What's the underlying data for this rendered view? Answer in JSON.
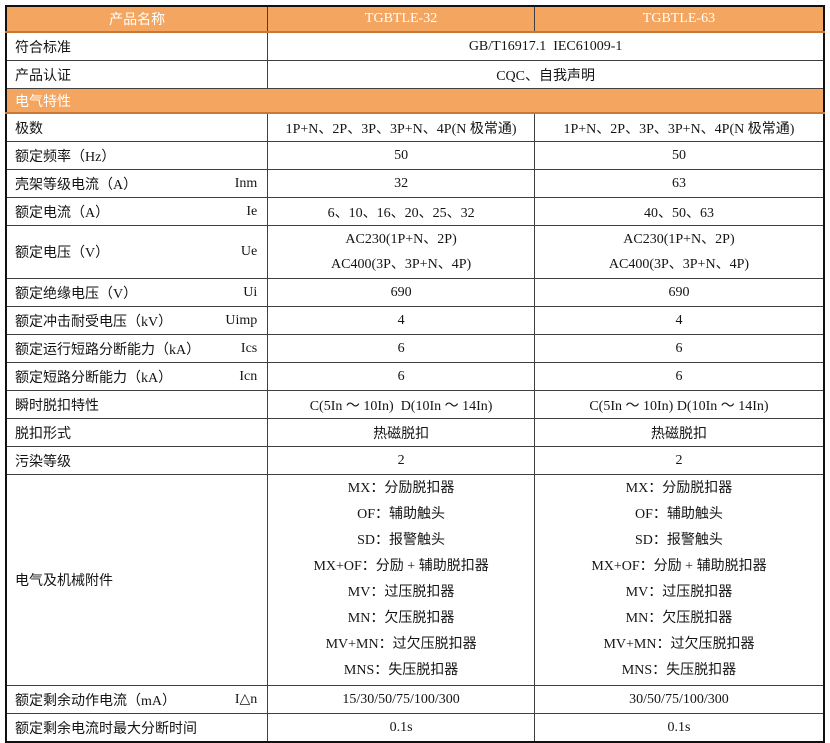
{
  "colors": {
    "header_bg": "#F4A661",
    "header_border": "#C67A33",
    "grid": "#404040",
    "outer_border": "#111111",
    "header_text": "#ffffff",
    "body_text": "#141414"
  },
  "table": {
    "header": {
      "product_name_label": "产品名称",
      "model_32": "TGBTLE-32",
      "model_63": "TGBTLE-63"
    },
    "rows": [
      {
        "type": "span",
        "label": "符合标准",
        "value": "GB/T16917.1  IEC61009-1"
      },
      {
        "type": "span",
        "label": "产品认证",
        "value": "CQC、自我声明"
      },
      {
        "type": "section",
        "label": "电气特性"
      },
      {
        "type": "pair",
        "label": "极数",
        "values": [
          "1P+N、2P、3P、3P+N、4P(N 极常通)",
          "1P+N、2P、3P、3P+N、4P(N 极常通)"
        ]
      },
      {
        "type": "pair",
        "label": "额定频率（Hz）",
        "values": [
          "50",
          "50"
        ]
      },
      {
        "type": "pair",
        "label": "壳架等级电流（A）",
        "sym": "Inm",
        "values": [
          "32",
          "63"
        ]
      },
      {
        "type": "pair",
        "label": "额定电流（A）",
        "sym": "Ie",
        "values": [
          "6、10、16、20、25、32",
          "40、50、63"
        ]
      },
      {
        "type": "pair",
        "label": "额定电压（V）",
        "sym": "Ue",
        "values": [
          [
            "AC230(1P+N、2P)",
            "AC400(3P、3P+N、4P)"
          ],
          [
            "AC230(1P+N、2P)",
            "AC400(3P、3P+N、4P)"
          ]
        ]
      },
      {
        "type": "pair",
        "label": "额定绝缘电压（V）",
        "sym": "Ui",
        "values": [
          "690",
          "690"
        ]
      },
      {
        "type": "pair",
        "label": "额定冲击耐受电压（kV）",
        "sym": "Uimp",
        "values": [
          "4",
          "4"
        ]
      },
      {
        "type": "pair",
        "label": "额定运行短路分断能力（kA）",
        "sym": "Ics",
        "values": [
          "6",
          "6"
        ]
      },
      {
        "type": "pair",
        "label": "额定短路分断能力（kA）",
        "sym": "Icn",
        "values": [
          "6",
          "6"
        ]
      },
      {
        "type": "pair",
        "label": "瞬时脱扣特性",
        "values": [
          "C(5In ～ 10In)  D(10In ～ 14In)",
          "C(5In ～ 10In) D(10In ～ 14In)"
        ]
      },
      {
        "type": "pair",
        "label": "脱扣形式",
        "values": [
          "热磁脱扣",
          "热磁脱扣"
        ]
      },
      {
        "type": "pair",
        "label": "污染等级",
        "values": [
          "2",
          "2"
        ]
      },
      {
        "type": "pair",
        "label": "电气及机械附件",
        "tall": true,
        "values": [
          [
            "MX：分励脱扣器",
            "OF：辅助触头",
            "SD：报警触头",
            "MX+OF：分励 + 辅助脱扣器",
            "MV：过压脱扣器",
            "MN：欠压脱扣器",
            "MV+MN：过欠压脱扣器",
            "MNS：失压脱扣器"
          ],
          [
            "MX：分励脱扣器",
            "OF：辅助触头",
            "SD：报警触头",
            "MX+OF：分励 + 辅助脱扣器",
            "MV：过压脱扣器",
            "MN：欠压脱扣器",
            "MV+MN：过欠压脱扣器",
            "MNS：失压脱扣器"
          ]
        ]
      },
      {
        "type": "pair",
        "label": "额定剩余动作电流（mA）",
        "sym": "I△n",
        "values": [
          "15/30/50/75/100/300",
          "30/50/75/100/300"
        ]
      },
      {
        "type": "pair",
        "label": "额定剩余电流时最大分断时间",
        "values": [
          "0.1s",
          "0.1s"
        ]
      }
    ]
  }
}
